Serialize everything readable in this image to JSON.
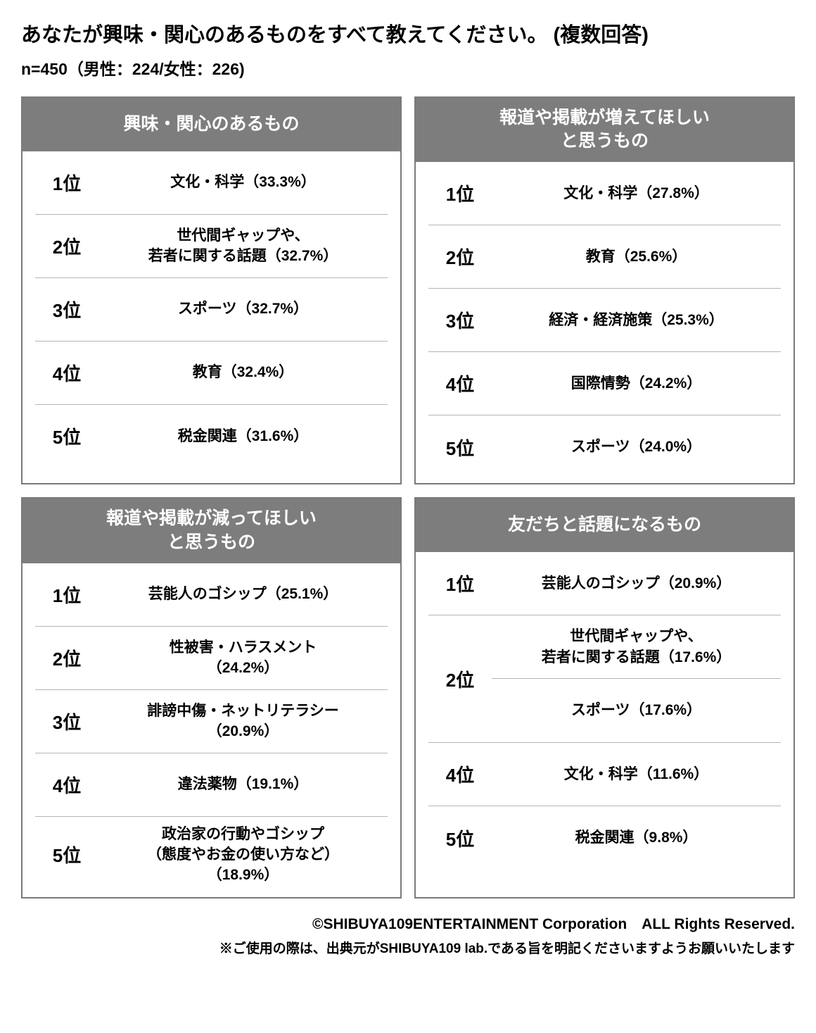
{
  "title": "あなたが興味・関心のあるものをすべて教えてください。\n(複数回答)",
  "subtitle": "n=450（男性：224/女性：226)",
  "styling": {
    "header_bg": "#7d7d7d",
    "header_text": "#ffffff",
    "border_color": "#7a7a7a",
    "divider_color": "#b5b5b5",
    "body_bg": "#ffffff",
    "text_color": "#000000",
    "title_fontsize": 29,
    "subtitle_fontsize": 23,
    "header_fontsize": 25,
    "rank_fontsize": 26,
    "content_fontsize": 21,
    "footer_fontsize": 21,
    "note_fontsize": 19
  },
  "panels": [
    {
      "header": "興味・関心のあるもの",
      "rows": [
        {
          "rank": "1位",
          "text": "文化・科学（33.3%）"
        },
        {
          "rank": "2位",
          "text": "世代間ギャップや、\n若者に関する話題（32.7%）"
        },
        {
          "rank": "3位",
          "text": "スポーツ（32.7%）"
        },
        {
          "rank": "4位",
          "text": "教育（32.4%）"
        },
        {
          "rank": "5位",
          "text": "税金関連（31.6%）"
        }
      ]
    },
    {
      "header": "報道や掲載が増えてほしい\nと思うもの",
      "rows": [
        {
          "rank": "1位",
          "text": "文化・科学（27.8%）"
        },
        {
          "rank": "2位",
          "text": "教育（25.6%）"
        },
        {
          "rank": "3位",
          "text": "経済・経済施策（25.3%）"
        },
        {
          "rank": "4位",
          "text": "国際情勢（24.2%）"
        },
        {
          "rank": "5位",
          "text": "スポーツ（24.0%）"
        }
      ]
    },
    {
      "header": "報道や掲載が減ってほしい\nと思うもの",
      "rows": [
        {
          "rank": "1位",
          "text": "芸能人のゴシップ（25.1%）"
        },
        {
          "rank": "2位",
          "text": "性被害・ハラスメント\n（24.2%）"
        },
        {
          "rank": "3位",
          "text": "誹謗中傷・ネットリテラシー\n（20.9%）"
        },
        {
          "rank": "4位",
          "text": "違法薬物（19.1%）"
        },
        {
          "rank": "5位",
          "text": "政治家の行動やゴシップ\n（態度やお金の使い方など）\n（18.9%）"
        }
      ]
    },
    {
      "header": "友だちと話題になるもの",
      "rows": [
        {
          "rank": "1位",
          "text": "芸能人のゴシップ（20.9%）"
        },
        {
          "rank": "2位",
          "merged": true,
          "texts": [
            "世代間ギャップや、\n若者に関する話題（17.6%）",
            "スポーツ（17.6%）"
          ]
        },
        {
          "rank": "4位",
          "text": "文化・科学（11.6%）"
        },
        {
          "rank": "5位",
          "text": "税金関連（9.8%）"
        }
      ]
    }
  ],
  "footer": {
    "copyright": "©SHIBUYA109ENTERTAINMENT Corporation　ALL Rights Reserved.",
    "note": "※ご使用の際は、出典元がSHIBUYA109 lab.である旨を明記くださいますようお願いいたします"
  }
}
